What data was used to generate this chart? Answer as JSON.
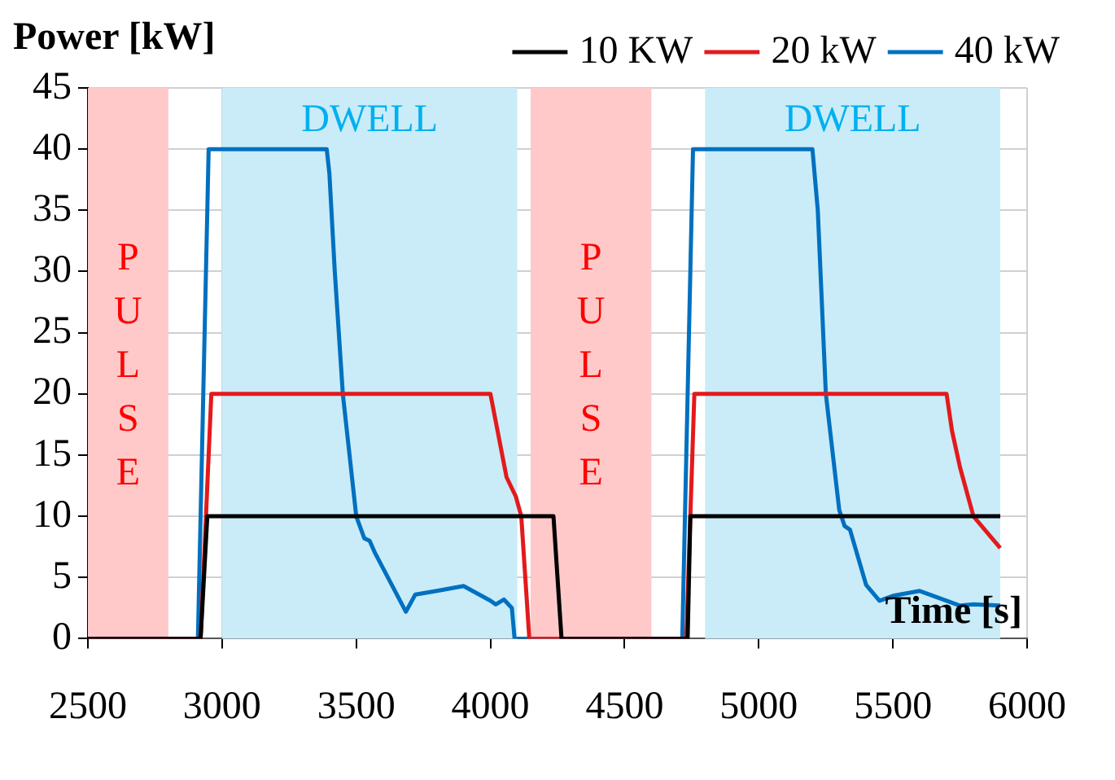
{
  "chart_data": {
    "type": "line",
    "ylabel": "Power [kW]",
    "xlabel": "Time [s]",
    "xlim": [
      2500,
      6000
    ],
    "xticks": [
      2500,
      3000,
      3500,
      4000,
      4500,
      5000,
      5500,
      6000
    ],
    "ylim": [
      0,
      45
    ],
    "yticks": [
      0,
      5,
      10,
      15,
      20,
      25,
      30,
      35,
      40,
      45
    ],
    "grid": true,
    "legend": "top",
    "marker": "none",
    "line_style": "solid",
    "bands": [
      {
        "axis": "x",
        "from": 2500,
        "to": 2800,
        "label": "PULSE",
        "color": "#ffc9c9"
      },
      {
        "axis": "x",
        "from": 3000,
        "to": 4100,
        "label": "DWELL",
        "color": "#c9ecf8"
      },
      {
        "axis": "x",
        "from": 4150,
        "to": 4600,
        "label": "PULSE",
        "color": "#ffc9c9"
      },
      {
        "axis": "x",
        "from": 4800,
        "to": 5900,
        "label": "DWELL",
        "color": "#c9ecf8"
      }
    ],
    "series": [
      {
        "name": "10 KW",
        "color": "#000000",
        "x": [
          2500,
          2920,
          2945,
          4235,
          4265,
          4735,
          4745,
          5900
        ],
        "values": [
          0,
          0,
          10,
          10,
          0,
          0,
          10,
          10
        ]
      },
      {
        "name": "20 kW",
        "color": "#e31a1c",
        "x": [
          2500,
          2920,
          2960,
          4000,
          4060,
          4095,
          4115,
          4145,
          4730,
          4760,
          5700,
          5720,
          5750,
          5800,
          5900
        ],
        "values": [
          0,
          0,
          20,
          20,
          13.2,
          11.6,
          10,
          0,
          0,
          20,
          20,
          17,
          14,
          10,
          7.4
        ]
      },
      {
        "name": "40 kW",
        "color": "#0070c0",
        "x": [
          2500,
          2910,
          2950,
          3390,
          3400,
          3420,
          3450,
          3500,
          3530,
          3550,
          3570,
          3685,
          3720,
          3800,
          3900,
          4000,
          4020,
          4050,
          4080,
          4090,
          4100,
          4715,
          4755,
          5200,
          5220,
          5250,
          5300,
          5320,
          5340,
          5400,
          5450,
          5500,
          5600,
          5700,
          5750,
          5800,
          5900
        ],
        "values": [
          0,
          0,
          40,
          40,
          38,
          30,
          20,
          10,
          8.2,
          8,
          7,
          2.2,
          3.6,
          3.9,
          4.3,
          3.1,
          2.8,
          3.2,
          2.5,
          0,
          0,
          0,
          40,
          40,
          35,
          20,
          10.5,
          9.2,
          8.9,
          4.4,
          3.1,
          3.5,
          3.9,
          3.1,
          2.7,
          2.8,
          2.7
        ]
      }
    ]
  }
}
